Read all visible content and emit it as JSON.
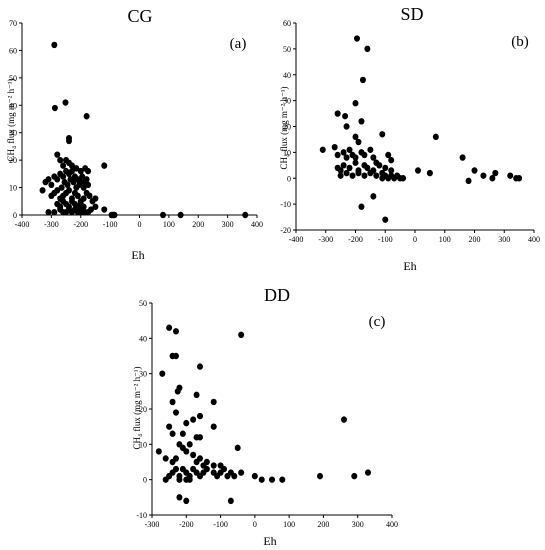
{
  "chart_data": [
    {
      "type": "scatter",
      "title": "CG",
      "panel_label": "(a)",
      "xlabel": "Eh",
      "ylabel": "CH₄ flux (mg m⁻² h⁻¹)",
      "xlim": [
        -400,
        400
      ],
      "ylim": [
        0,
        70
      ],
      "xticks": [
        -400,
        -300,
        -200,
        -100,
        0,
        100,
        200,
        300,
        400
      ],
      "yticks": [
        0,
        10,
        20,
        30,
        40,
        50,
        60,
        70
      ],
      "points": [
        [
          -290,
          62
        ],
        [
          -288,
          39
        ],
        [
          -252,
          41
        ],
        [
          -240,
          28
        ],
        [
          -240,
          27
        ],
        [
          -180,
          36
        ],
        [
          -280,
          22
        ],
        [
          -270,
          20
        ],
        [
          -260,
          18
        ],
        [
          -250,
          20
        ],
        [
          -240,
          19
        ],
        [
          -230,
          18
        ],
        [
          -215,
          17
        ],
        [
          -200,
          16
        ],
        [
          -185,
          17
        ],
        [
          -175,
          16
        ],
        [
          -120,
          18
        ],
        [
          -330,
          9
        ],
        [
          -320,
          12
        ],
        [
          -310,
          13
        ],
        [
          -300,
          11
        ],
        [
          -290,
          14
        ],
        [
          -280,
          13
        ],
        [
          -270,
          15
        ],
        [
          -265,
          10
        ],
        [
          -260,
          14
        ],
        [
          -255,
          12
        ],
        [
          -250,
          16
        ],
        [
          -245,
          11
        ],
        [
          -240,
          15
        ],
        [
          -235,
          13
        ],
        [
          -230,
          16
        ],
        [
          -225,
          12
        ],
        [
          -220,
          14
        ],
        [
          -215,
          10
        ],
        [
          -210,
          13
        ],
        [
          -205,
          11
        ],
        [
          -200,
          12
        ],
        [
          -195,
          14
        ],
        [
          -190,
          10
        ],
        [
          -185,
          12
        ],
        [
          -180,
          13
        ],
        [
          -175,
          11
        ],
        [
          -300,
          7
        ],
        [
          -290,
          8
        ],
        [
          -280,
          9
        ],
        [
          -270,
          6
        ],
        [
          -260,
          7
        ],
        [
          -250,
          8
        ],
        [
          -240,
          9
        ],
        [
          -230,
          6
        ],
        [
          -220,
          8
        ],
        [
          -210,
          7
        ],
        [
          -200,
          5
        ],
        [
          -190,
          6
        ],
        [
          -180,
          8
        ],
        [
          -170,
          7
        ],
        [
          -160,
          5
        ],
        [
          -150,
          6
        ],
        [
          -280,
          4
        ],
        [
          -270,
          3
        ],
        [
          -260,
          5
        ],
        [
          -250,
          4
        ],
        [
          -240,
          3
        ],
        [
          -230,
          5
        ],
        [
          -220,
          4
        ],
        [
          -210,
          3
        ],
        [
          -200,
          4
        ],
        [
          -190,
          3
        ],
        [
          -165,
          2
        ],
        [
          -150,
          3
        ],
        [
          -310,
          1
        ],
        [
          -290,
          1
        ],
        [
          -270,
          2
        ],
        [
          -260,
          1
        ],
        [
          -250,
          1
        ],
        [
          -240,
          2
        ],
        [
          -230,
          1
        ],
        [
          -220,
          2
        ],
        [
          -210,
          1
        ],
        [
          -200,
          1
        ],
        [
          -195,
          2
        ],
        [
          -185,
          1
        ],
        [
          -175,
          1
        ],
        [
          -120,
          2
        ],
        [
          -95,
          0
        ],
        [
          -90,
          0
        ],
        [
          -85,
          0
        ],
        [
          80,
          0
        ],
        [
          140,
          0
        ],
        [
          360,
          0
        ]
      ]
    },
    {
      "type": "scatter",
      "title": "SD",
      "panel_label": "(b)",
      "xlabel": "Eh",
      "ylabel": "CH₄ flux (mg m⁻² h⁻¹)",
      "xlim": [
        -400,
        400
      ],
      "ylim": [
        -20,
        60
      ],
      "xticks": [
        -400,
        -300,
        -200,
        -100,
        0,
        100,
        200,
        300,
        400
      ],
      "yticks": [
        -20,
        -10,
        0,
        10,
        20,
        30,
        40,
        50,
        60
      ],
      "points": [
        [
          -195,
          54
        ],
        [
          -160,
          50
        ],
        [
          -175,
          38
        ],
        [
          -200,
          29
        ],
        [
          -260,
          25
        ],
        [
          -235,
          24
        ],
        [
          -180,
          22
        ],
        [
          -230,
          20
        ],
        [
          -200,
          16
        ],
        [
          -190,
          14
        ],
        [
          -110,
          17
        ],
        [
          70,
          16
        ],
        [
          -310,
          11
        ],
        [
          -270,
          12
        ],
        [
          -260,
          9
        ],
        [
          -240,
          10
        ],
        [
          -230,
          8
        ],
        [
          -220,
          11
        ],
        [
          -210,
          9
        ],
        [
          -200,
          8
        ],
        [
          -180,
          10
        ],
        [
          -170,
          9
        ],
        [
          -150,
          11
        ],
        [
          -140,
          8
        ],
        [
          -130,
          6
        ],
        [
          -90,
          9
        ],
        [
          -80,
          7
        ],
        [
          -260,
          4
        ],
        [
          -250,
          3
        ],
        [
          -240,
          5
        ],
        [
          -220,
          4
        ],
        [
          -200,
          6
        ],
        [
          -190,
          3
        ],
        [
          -170,
          5
        ],
        [
          -160,
          4
        ],
        [
          -140,
          3
        ],
        [
          -120,
          5
        ],
        [
          -110,
          2
        ],
        [
          -100,
          4
        ],
        [
          -80,
          3
        ],
        [
          10,
          3
        ],
        [
          50,
          2
        ],
        [
          -250,
          1
        ],
        [
          -230,
          2
        ],
        [
          -210,
          1
        ],
        [
          -190,
          2
        ],
        [
          -170,
          1
        ],
        [
          -150,
          2
        ],
        [
          -130,
          1
        ],
        [
          -110,
          0
        ],
        [
          -100,
          1
        ],
        [
          -90,
          0
        ],
        [
          -80,
          1
        ],
        [
          -70,
          0
        ],
        [
          -60,
          1
        ],
        [
          -50,
          0
        ],
        [
          -40,
          0
        ],
        [
          -180,
          -11
        ],
        [
          -140,
          -7
        ],
        [
          -100,
          -16
        ],
        [
          160,
          8
        ],
        [
          200,
          3
        ],
        [
          230,
          1
        ],
        [
          260,
          0
        ],
        [
          270,
          2
        ],
        [
          180,
          -1
        ],
        [
          320,
          1
        ],
        [
          340,
          0
        ],
        [
          350,
          0
        ]
      ]
    },
    {
      "type": "scatter",
      "title": "DD",
      "panel_label": "(c)",
      "xlabel": "Eh",
      "ylabel": "CH₄ flux (mg m⁻² h⁻¹)",
      "xlim": [
        -300,
        400
      ],
      "ylim": [
        -10,
        50
      ],
      "xticks": [
        -300,
        -200,
        -100,
        0,
        100,
        200,
        300,
        400
      ],
      "yticks": [
        -10,
        0,
        10,
        20,
        30,
        40,
        50
      ],
      "points": [
        [
          -250,
          43
        ],
        [
          -230,
          42
        ],
        [
          -40,
          41
        ],
        [
          -240,
          35
        ],
        [
          -230,
          35
        ],
        [
          -160,
          32
        ],
        [
          -270,
          30
        ],
        [
          -220,
          26
        ],
        [
          -225,
          25
        ],
        [
          -240,
          22
        ],
        [
          -120,
          22
        ],
        [
          -170,
          24
        ],
        [
          -230,
          19
        ],
        [
          -160,
          18
        ],
        [
          -250,
          15
        ],
        [
          -240,
          13
        ],
        [
          -210,
          13
        ],
        [
          -200,
          16
        ],
        [
          -180,
          17
        ],
        [
          -170,
          12
        ],
        [
          -160,
          12
        ],
        [
          -120,
          15
        ],
        [
          -280,
          8
        ],
        [
          -260,
          6
        ],
        [
          -240,
          5
        ],
        [
          -230,
          6
        ],
        [
          -220,
          10
        ],
        [
          -210,
          9
        ],
        [
          -200,
          8
        ],
        [
          -190,
          10
        ],
        [
          -180,
          7
        ],
        [
          -170,
          5
        ],
        [
          -160,
          6
        ],
        [
          -150,
          4
        ],
        [
          -140,
          5
        ],
        [
          -120,
          4
        ],
        [
          -100,
          4
        ],
        [
          -90,
          3
        ],
        [
          -70,
          2
        ],
        [
          -50,
          9
        ],
        [
          -250,
          1
        ],
        [
          -240,
          2
        ],
        [
          -230,
          3
        ],
        [
          -220,
          1
        ],
        [
          -210,
          3
        ],
        [
          -200,
          2
        ],
        [
          -190,
          1
        ],
        [
          -180,
          3
        ],
        [
          -170,
          2
        ],
        [
          -160,
          1
        ],
        [
          -150,
          2
        ],
        [
          -140,
          3
        ],
        [
          -120,
          2
        ],
        [
          -110,
          1
        ],
        [
          -100,
          2
        ],
        [
          -80,
          1
        ],
        [
          -60,
          1
        ],
        [
          -40,
          2
        ],
        [
          -260,
          0
        ],
        [
          -220,
          0
        ],
        [
          -200,
          0
        ],
        [
          -190,
          0
        ],
        [
          0,
          1
        ],
        [
          20,
          0
        ],
        [
          50,
          0
        ],
        [
          80,
          0
        ],
        [
          -220,
          -5
        ],
        [
          -200,
          -6
        ],
        [
          -70,
          -6
        ],
        [
          190,
          1
        ],
        [
          260,
          17
        ],
        [
          290,
          1
        ],
        [
          330,
          2
        ]
      ]
    }
  ]
}
